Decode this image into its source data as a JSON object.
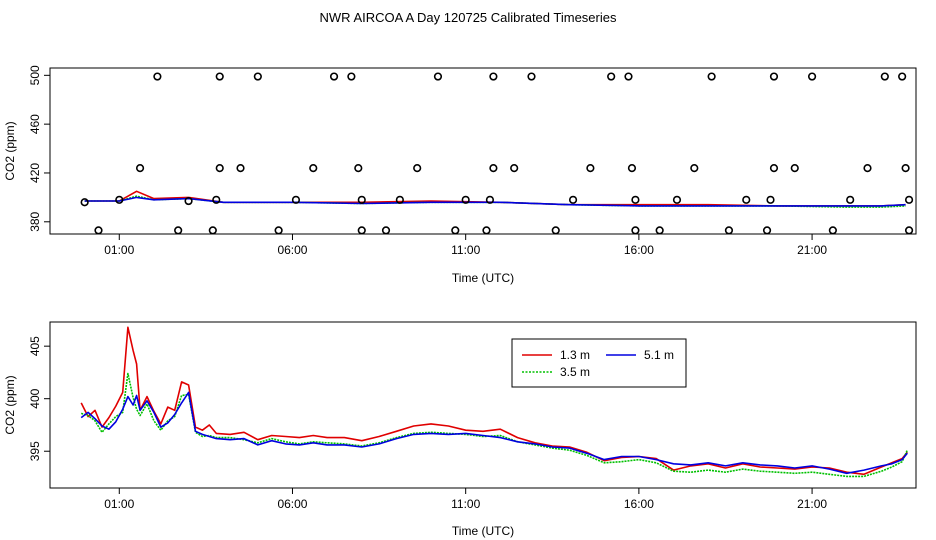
{
  "title": "NWR AIRCOA A  Day 120725  Calibrated Timeseries",
  "colors": {
    "s13": "#e00000",
    "s35": "#00c000",
    "s51": "#0000e0",
    "marker": "#000000"
  },
  "chart_data": [
    {
      "type": "line+scatter",
      "xlabel": "Time (UTC)",
      "ylabel": "CO2 (ppm)",
      "xlim": [
        -1,
        24
      ],
      "ylim": [
        370,
        506
      ],
      "x_ticks": [
        1,
        6,
        11,
        16,
        21
      ],
      "x_tick_labels": [
        "01:00",
        "06:00",
        "11:00",
        "16:00",
        "21:00"
      ],
      "y_ticks": [
        380,
        420,
        460,
        500
      ],
      "y_tick_labels": [
        "380",
        "420",
        "460",
        "500"
      ],
      "calibration_points": {
        "x": [
          0.0,
          0.4,
          1.0,
          1.6,
          2.1,
          2.7,
          3.0,
          3.7,
          3.8,
          3.9,
          3.9,
          4.5,
          5.0,
          5.6,
          6.1,
          6.6,
          7.2,
          7.7,
          7.9,
          8.0,
          8.0,
          8.7,
          9.1,
          9.6,
          10.2,
          10.7,
          11.0,
          11.6,
          11.7,
          11.8,
          11.8,
          12.4,
          12.9,
          13.6,
          14.1,
          14.6,
          15.2,
          15.7,
          15.8,
          15.9,
          15.9,
          16.6,
          17.1,
          17.6,
          18.1,
          18.6,
          19.1,
          19.7,
          19.8,
          19.9,
          19.9,
          20.5,
          21.0,
          21.6,
          22.1,
          22.6,
          23.1,
          23.6,
          23.7,
          23.8,
          23.8
        ],
        "y": [
          396,
          373,
          398,
          424,
          499,
          373,
          397,
          373,
          398,
          424,
          499,
          424,
          499,
          373,
          398,
          424,
          499,
          499,
          424,
          398,
          373,
          373,
          398,
          424,
          499,
          373,
          398,
          373,
          398,
          424,
          499,
          424,
          499,
          373,
          398,
          424,
          499,
          499,
          424,
          398,
          373,
          373,
          398,
          424,
          499,
          373,
          398,
          373,
          398,
          424,
          499,
          424,
          499,
          373,
          398,
          424,
          499,
          499,
          424,
          398,
          373
        ]
      },
      "series": [
        {
          "name": "1.3 m",
          "x": [
            0.0,
            1.0,
            1.5,
            2.0,
            3.0,
            4.0,
            6.0,
            8.0,
            10.0,
            12.0,
            14.0,
            16.0,
            18.0,
            20.0,
            22.0,
            23.0,
            23.7
          ],
          "y": [
            397,
            397,
            405,
            399,
            400,
            396,
            396,
            396,
            397,
            396,
            394,
            394,
            394,
            393,
            393,
            393,
            394
          ]
        },
        {
          "name": "3.5 m",
          "x": [
            0.0,
            1.0,
            1.5,
            2.0,
            3.0,
            4.0,
            6.0,
            8.0,
            10.0,
            12.0,
            14.0,
            16.0,
            18.0,
            20.0,
            22.0,
            23.0,
            23.7
          ],
          "y": [
            397,
            397,
            401,
            398,
            399,
            396,
            396,
            395,
            396,
            396,
            394,
            393,
            393,
            393,
            392,
            392,
            393
          ]
        },
        {
          "name": "5.1 m",
          "x": [
            0.0,
            1.0,
            1.5,
            2.0,
            3.0,
            4.0,
            6.0,
            8.0,
            10.0,
            12.0,
            14.0,
            16.0,
            18.0,
            20.0,
            22.0,
            23.0,
            23.7
          ],
          "y": [
            397,
            397,
            400,
            398,
            399,
            396,
            396,
            395,
            396,
            396,
            394,
            393,
            393,
            393,
            393,
            393,
            394
          ]
        }
      ]
    },
    {
      "type": "line",
      "xlabel": "Time (UTC)",
      "ylabel": "CO2 (ppm)",
      "xlim": [
        -1,
        24
      ],
      "ylim": [
        391.5,
        407.3
      ],
      "x_ticks": [
        1,
        6,
        11,
        16,
        21
      ],
      "x_tick_labels": [
        "01:00",
        "06:00",
        "11:00",
        "16:00",
        "21:00"
      ],
      "y_ticks": [
        395,
        400,
        405
      ],
      "y_tick_labels": [
        "395",
        "400",
        "405"
      ],
      "legend": {
        "position": "top-center",
        "entries": [
          "1.3 m",
          "5.1 m",
          "3.5 m"
        ]
      },
      "series": [
        {
          "name": "1.3 m",
          "x": [
            -0.1,
            0.1,
            0.3,
            0.5,
            0.7,
            0.9,
            1.1,
            1.25,
            1.4,
            1.5,
            1.6,
            1.8,
            2.0,
            2.2,
            2.4,
            2.6,
            2.8,
            3.0,
            3.2,
            3.4,
            3.6,
            3.8,
            4.2,
            4.6,
            5.0,
            5.4,
            5.8,
            6.2,
            6.6,
            7.0,
            7.5,
            8.0,
            8.5,
            9.0,
            9.5,
            10.0,
            10.5,
            11.0,
            11.5,
            12.0,
            12.5,
            13.0,
            13.5,
            14.0,
            14.5,
            15.0,
            15.5,
            16.0,
            16.5,
            17.0,
            17.5,
            18.0,
            18.5,
            19.0,
            19.5,
            20.0,
            20.5,
            21.0,
            21.5,
            22.0,
            22.5,
            23.0,
            23.3,
            23.6,
            23.75
          ],
          "y": [
            399.6,
            398.3,
            398.9,
            397.3,
            398.2,
            399.3,
            400.6,
            406.8,
            404.6,
            403.3,
            398.9,
            400.2,
            398.8,
            397.6,
            399.2,
            398.9,
            401.6,
            401.3,
            397.3,
            397.0,
            397.5,
            396.7,
            396.6,
            396.8,
            396.1,
            396.5,
            396.4,
            396.3,
            396.5,
            396.3,
            396.3,
            396.0,
            396.4,
            396.9,
            397.4,
            397.6,
            397.4,
            397.0,
            396.9,
            397.1,
            396.3,
            395.8,
            395.5,
            395.4,
            394.9,
            394.1,
            394.4,
            394.5,
            394.3,
            393.2,
            393.6,
            393.8,
            393.4,
            393.8,
            393.5,
            393.4,
            393.3,
            393.5,
            393.4,
            393.0,
            392.8,
            393.5,
            393.9,
            394.3,
            394.9
          ]
        },
        {
          "name": "3.5 m",
          "x": [
            -0.1,
            0.1,
            0.3,
            0.5,
            0.7,
            0.9,
            1.1,
            1.25,
            1.4,
            1.5,
            1.6,
            1.8,
            2.0,
            2.2,
            2.4,
            2.6,
            2.8,
            3.0,
            3.2,
            3.4,
            3.6,
            3.8,
            4.2,
            4.6,
            5.0,
            5.4,
            5.8,
            6.2,
            6.6,
            7.0,
            7.5,
            8.0,
            8.5,
            9.0,
            9.5,
            10.0,
            10.5,
            11.0,
            11.5,
            12.0,
            12.5,
            13.0,
            13.5,
            14.0,
            14.5,
            15.0,
            15.5,
            16.0,
            16.5,
            17.0,
            17.5,
            18.0,
            18.5,
            19.0,
            19.5,
            20.0,
            20.5,
            21.0,
            21.5,
            22.0,
            22.5,
            23.0,
            23.3,
            23.6,
            23.75
          ],
          "y": [
            398.6,
            398.4,
            397.9,
            396.8,
            397.6,
            398.3,
            398.7,
            402.4,
            400.1,
            399.0,
            398.4,
            399.5,
            397.9,
            397.0,
            397.9,
            398.3,
            400.3,
            400.4,
            396.8,
            396.4,
            396.5,
            396.3,
            396.3,
            396.1,
            395.8,
            396.2,
            395.9,
            395.7,
            395.9,
            395.8,
            395.7,
            395.5,
            395.8,
            396.3,
            396.7,
            396.8,
            396.7,
            396.6,
            396.4,
            396.5,
            395.9,
            395.6,
            395.3,
            395.1,
            394.6,
            393.9,
            394.0,
            394.2,
            393.9,
            393.1,
            393.0,
            393.2,
            393.0,
            393.3,
            393.1,
            393.0,
            392.9,
            393.0,
            392.8,
            392.6,
            392.6,
            393.1,
            393.5,
            394.0,
            395.1
          ]
        },
        {
          "name": "5.1 m",
          "x": [
            -0.1,
            0.1,
            0.3,
            0.5,
            0.7,
            0.9,
            1.1,
            1.25,
            1.4,
            1.5,
            1.6,
            1.8,
            2.0,
            2.2,
            2.4,
            2.6,
            2.8,
            3.0,
            3.2,
            3.4,
            3.6,
            3.8,
            4.2,
            4.6,
            5.0,
            5.4,
            5.8,
            6.2,
            6.6,
            7.0,
            7.5,
            8.0,
            8.5,
            9.0,
            9.5,
            10.0,
            10.5,
            11.0,
            11.5,
            12.0,
            12.5,
            13.0,
            13.5,
            14.0,
            14.5,
            15.0,
            15.5,
            16.0,
            16.5,
            17.0,
            17.5,
            18.0,
            18.5,
            19.0,
            19.5,
            20.0,
            20.5,
            21.0,
            21.5,
            22.0,
            22.5,
            23.0,
            23.3,
            23.6,
            23.75
          ],
          "y": [
            398.2,
            398.7,
            398.1,
            397.4,
            397.1,
            397.8,
            399.0,
            400.2,
            399.4,
            400.3,
            398.9,
            399.8,
            398.7,
            397.3,
            397.7,
            398.5,
            399.6,
            400.6,
            396.9,
            396.6,
            396.4,
            396.2,
            396.1,
            396.2,
            395.6,
            396.0,
            395.7,
            395.6,
            395.8,
            395.6,
            395.6,
            395.4,
            395.7,
            396.2,
            396.6,
            396.7,
            396.6,
            396.7,
            396.5,
            396.3,
            395.9,
            395.7,
            395.4,
            395.3,
            394.8,
            394.2,
            394.5,
            394.5,
            394.2,
            393.8,
            393.7,
            393.9,
            393.6,
            393.9,
            393.7,
            393.6,
            393.4,
            393.6,
            393.3,
            392.9,
            393.2,
            393.6,
            393.8,
            394.2,
            394.8
          ]
        }
      ]
    }
  ]
}
